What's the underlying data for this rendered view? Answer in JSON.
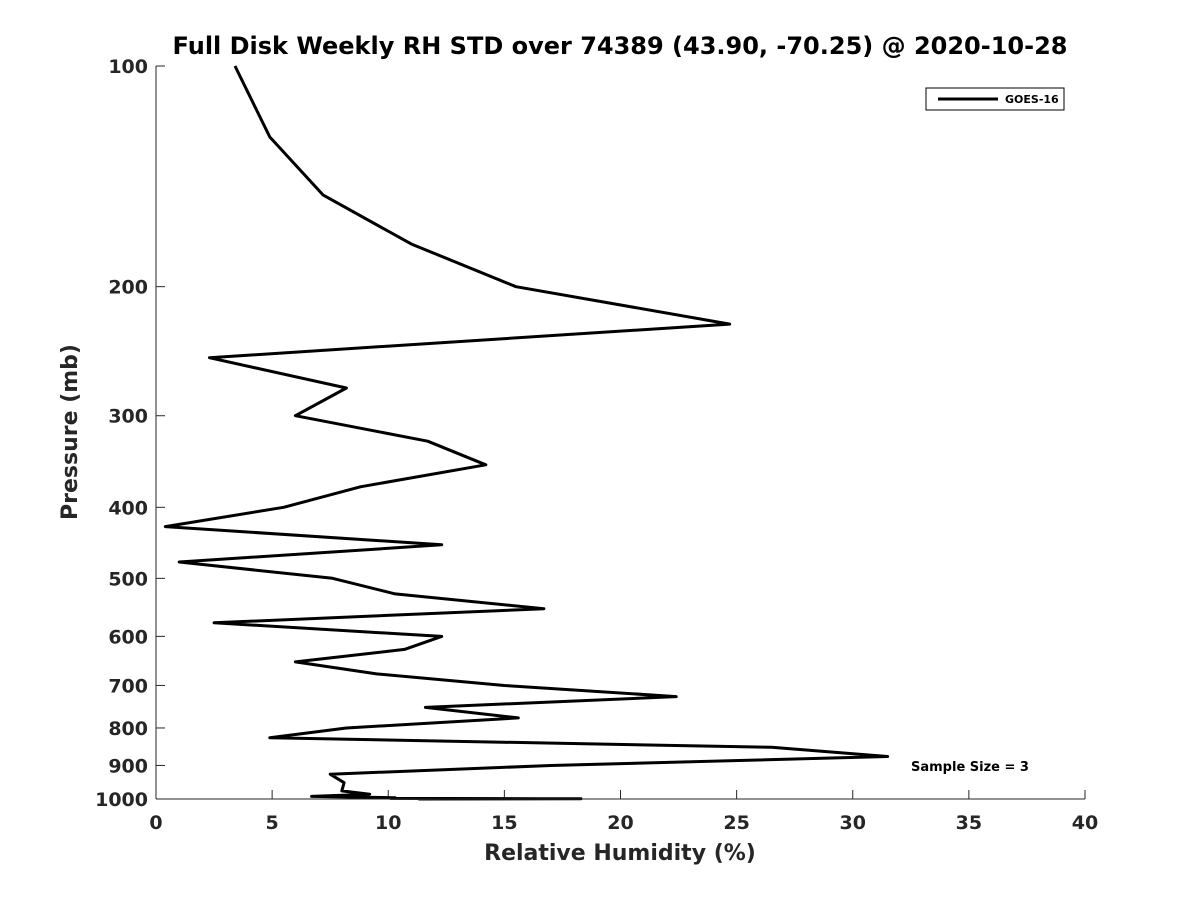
{
  "chart_data": {
    "type": "line",
    "title": "Full Disk Weekly RH STD over 74389 (43.90, -70.25) @ 2020-10-28",
    "xlabel": "Relative Humidity (%)",
    "ylabel": "Pressure (mb)",
    "xlim": [
      0,
      40
    ],
    "ylim": [
      100,
      1000
    ],
    "yscale": "log",
    "y_reversed": true,
    "xticks": [
      0,
      5,
      10,
      15,
      20,
      25,
      30,
      35,
      40
    ],
    "yticks": [
      100,
      200,
      300,
      400,
      500,
      600,
      700,
      800,
      900,
      1000
    ],
    "grid": false,
    "legend_position": "top-right",
    "annotation": "Sample Size = 3",
    "series": [
      {
        "name": "GOES-16",
        "color": "#000000",
        "points": [
          [
            3.4,
            100
          ],
          [
            4.9,
            125
          ],
          [
            7.2,
            150
          ],
          [
            11.0,
            175
          ],
          [
            15.5,
            200
          ],
          [
            24.7,
            225
          ],
          [
            2.3,
            250
          ],
          [
            8.2,
            275
          ],
          [
            6.0,
            300
          ],
          [
            11.7,
            325
          ],
          [
            14.2,
            350
          ],
          [
            8.8,
            375
          ],
          [
            5.5,
            400
          ],
          [
            0.4,
            425
          ],
          [
            12.3,
            450
          ],
          [
            1.0,
            475
          ],
          [
            7.6,
            500
          ],
          [
            10.3,
            525
          ],
          [
            16.7,
            550
          ],
          [
            2.5,
            575
          ],
          [
            12.3,
            600
          ],
          [
            10.7,
            625
          ],
          [
            6.0,
            650
          ],
          [
            9.5,
            675
          ],
          [
            15.0,
            700
          ],
          [
            22.4,
            725
          ],
          [
            11.6,
            750
          ],
          [
            15.6,
            775
          ],
          [
            8.2,
            800
          ],
          [
            4.9,
            825
          ],
          [
            26.5,
            850
          ],
          [
            31.5,
            875
          ],
          [
            17.0,
            900
          ],
          [
            7.5,
            925
          ],
          [
            8.1,
            950
          ],
          [
            8.0,
            975
          ],
          [
            9.2,
            985
          ],
          [
            6.7,
            992
          ],
          [
            10.3,
            996
          ],
          [
            10.1,
            998
          ],
          [
            16.5,
            999
          ],
          [
            18.3,
            999.5
          ],
          [
            11.3,
            1000
          ]
        ]
      }
    ]
  }
}
